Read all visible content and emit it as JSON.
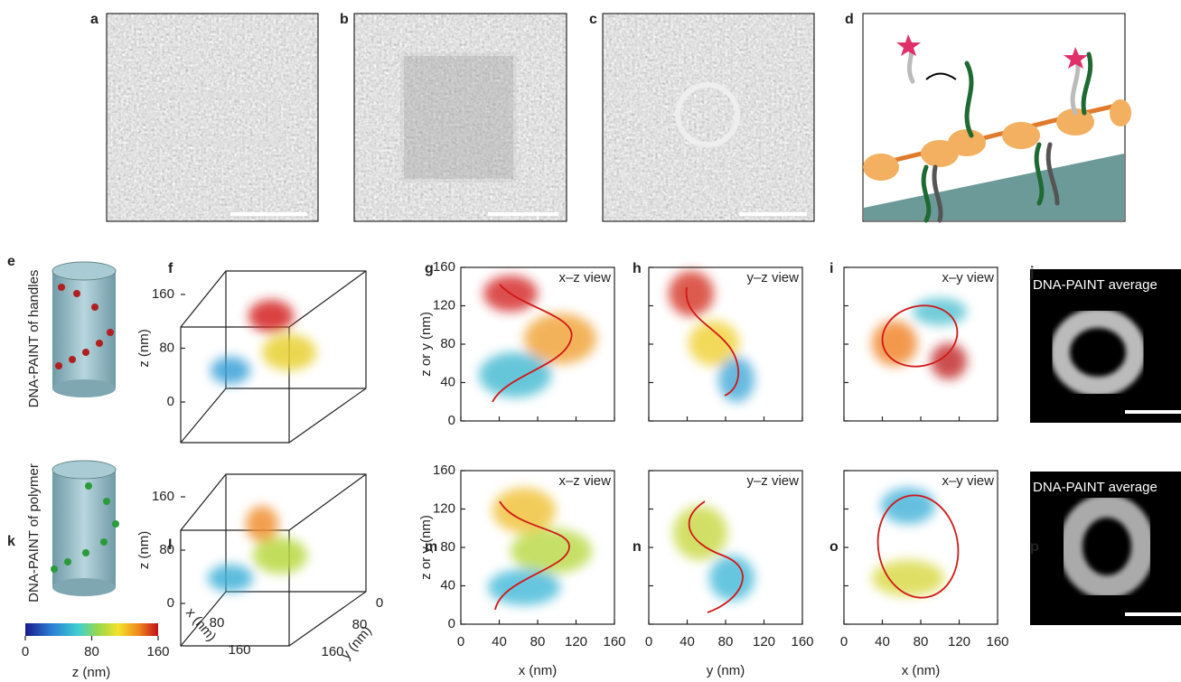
{
  "panel_labels": [
    "a",
    "b",
    "c",
    "d",
    "e",
    "f",
    "g",
    "h",
    "i",
    "j",
    "k",
    "l",
    "m",
    "n",
    "o",
    "p"
  ],
  "side_labels": [
    "DNA-PAINT of handles",
    "DNA-PAINT of polymer"
  ],
  "views": [
    "x–z view",
    "y–z view",
    "x–y view"
  ],
  "image_captions": [
    "DNA-PAINT average",
    "DNA-PAINT average"
  ],
  "plot_axes": {
    "xlim": [
      0,
      160
    ],
    "ylim": [
      0,
      160
    ],
    "xticks": [
      0,
      40,
      80,
      120,
      160
    ],
    "yticks": [
      0,
      40,
      80,
      120,
      160
    ],
    "y_label": "z or y (nm)",
    "x_labels": [
      "x (nm)",
      "y (nm)",
      "x (nm)"
    ]
  },
  "cube_f": {
    "z_ticks": [
      0,
      80,
      160
    ],
    "z_label": "z (nm)"
  },
  "cube_l": {
    "z_ticks": [
      0,
      80,
      160
    ],
    "z_label": "z (nm)",
    "x_ticks": [
      80,
      160
    ],
    "x_label": "x (nm)",
    "y_ticks": [
      0,
      80,
      160
    ],
    "y_label": "y (nm)"
  },
  "colorbar": {
    "ticks": [
      0,
      80,
      160
    ],
    "label": "z (nm)"
  }
}
